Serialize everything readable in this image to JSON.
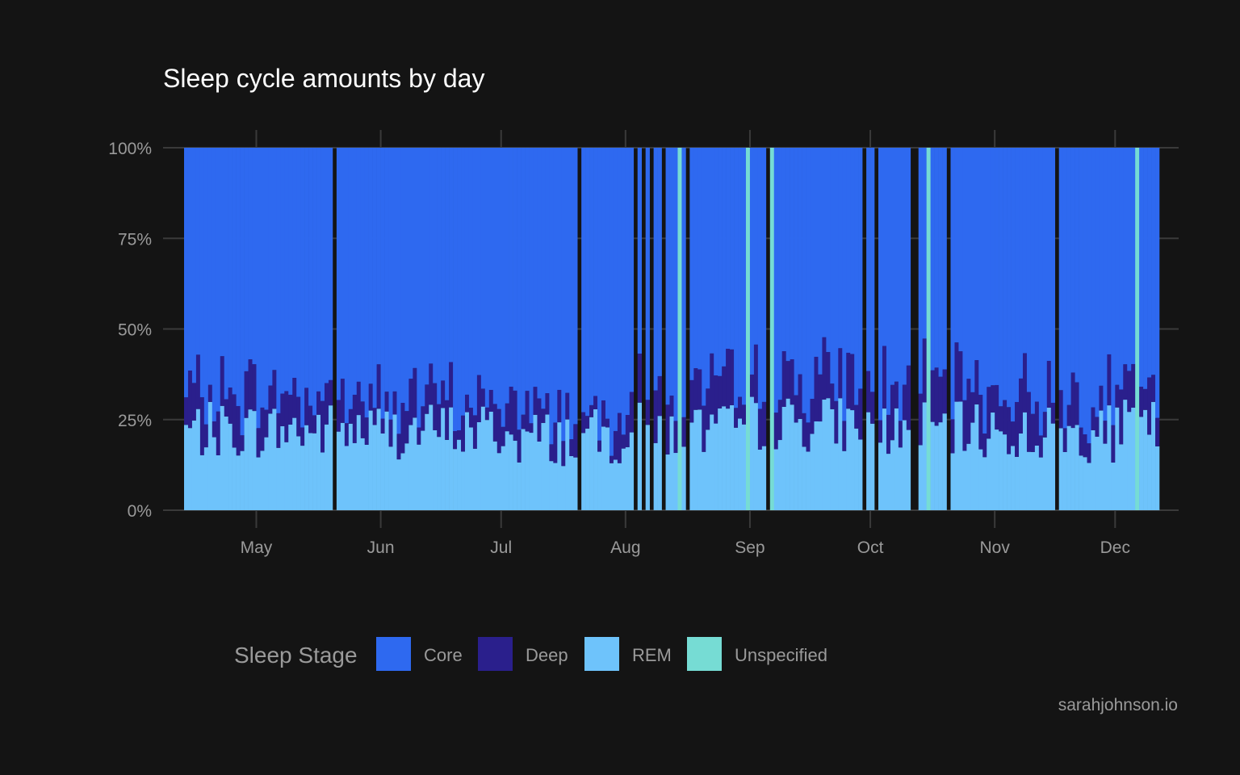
{
  "chart_data": {
    "type": "bar",
    "stacked": true,
    "normalized": true,
    "title": "Sleep cycle amounts by day",
    "xlabel": "",
    "ylabel": "",
    "x_range": [
      "2023-04-13",
      "2023-12-11"
    ],
    "ylim": [
      0,
      1
    ],
    "y_ticks": [
      {
        "value": 0,
        "label": "0%"
      },
      {
        "value": 0.25,
        "label": "25%"
      },
      {
        "value": 0.5,
        "label": "50%"
      },
      {
        "value": 0.75,
        "label": "75%"
      },
      {
        "value": 1,
        "label": "100%"
      }
    ],
    "x_ticks": [
      {
        "date": "2023-05-01",
        "label": "May"
      },
      {
        "date": "2023-06-01",
        "label": "Jun"
      },
      {
        "date": "2023-07-01",
        "label": "Jul"
      },
      {
        "date": "2023-08-01",
        "label": "Aug"
      },
      {
        "date": "2023-09-01",
        "label": "Sep"
      },
      {
        "date": "2023-10-01",
        "label": "Oct"
      },
      {
        "date": "2023-11-01",
        "label": "Nov"
      },
      {
        "date": "2023-12-01",
        "label": "Dec"
      }
    ],
    "grid": true,
    "legend": {
      "title": "Sleep Stage",
      "position": "bottom",
      "entries": [
        {
          "name": "Core",
          "color": "#2e69f0"
        },
        {
          "name": "Deep",
          "color": "#2a1f8c"
        },
        {
          "name": "REM",
          "color": "#6ec3fb"
        },
        {
          "name": "Unspecified",
          "color": "#76dcd4"
        }
      ]
    },
    "series_order": [
      "Core",
      "Deep",
      "REM",
      "Unspecified"
    ],
    "colors": {
      "Core": "#2e69f0",
      "Deep": "#2a1f8c",
      "REM": "#6ec3fb",
      "Unspecified": "#76dcd4"
    },
    "missing_dates": [
      "2023-05-20",
      "2023-07-20",
      "2023-08-03",
      "2023-08-05",
      "2023-08-07",
      "2023-08-10",
      "2023-08-16",
      "2023-09-05",
      "2023-09-29",
      "2023-10-02",
      "2023-10-11",
      "2023-10-12",
      "2023-10-20",
      "2023-11-16"
    ],
    "unspecified_days": [
      {
        "date": "2023-08-14",
        "unspecified": 1
      },
      {
        "date": "2023-08-31",
        "unspecified": 1
      },
      {
        "date": "2023-09-06",
        "unspecified": 1
      },
      {
        "date": "2023-10-15",
        "unspecified": 1
      },
      {
        "date": "2023-12-06",
        "unspecified": 1
      }
    ],
    "segments": [
      {
        "date_range": [
          "2023-04-13",
          "2023-04-30"
        ],
        "rem_avg": 0.22,
        "deep_avg": 0.1
      },
      {
        "date_range": [
          "2023-05-01",
          "2023-05-31"
        ],
        "rem_avg": 0.22,
        "deep_avg": 0.1
      },
      {
        "date_range": [
          "2023-06-01",
          "2023-06-30"
        ],
        "rem_avg": 0.22,
        "deep_avg": 0.08
      },
      {
        "date_range": [
          "2023-07-01",
          "2023-07-31"
        ],
        "rem_avg": 0.2,
        "deep_avg": 0.08
      },
      {
        "date_range": [
          "2023-08-01",
          "2023-08-31"
        ],
        "rem_avg": 0.22,
        "deep_avg": 0.11
      },
      {
        "date_range": [
          "2023-09-01",
          "2023-09-30"
        ],
        "rem_avg": 0.24,
        "deep_avg": 0.12
      },
      {
        "date_range": [
          "2023-10-01",
          "2023-10-31"
        ],
        "rem_avg": 0.22,
        "deep_avg": 0.12
      },
      {
        "date_range": [
          "2023-11-01",
          "2023-11-30"
        ],
        "rem_avg": 0.21,
        "deep_avg": 0.11
      },
      {
        "date_range": [
          "2023-12-01",
          "2023-12-11"
        ],
        "rem_avg": 0.23,
        "deep_avg": 0.1
      }
    ],
    "caption": "sarahjohnson.io"
  },
  "colors": {
    "background": "#141414",
    "grid": "#3a3a3a",
    "text": "#9a9a9a",
    "title": "#ffffff"
  }
}
